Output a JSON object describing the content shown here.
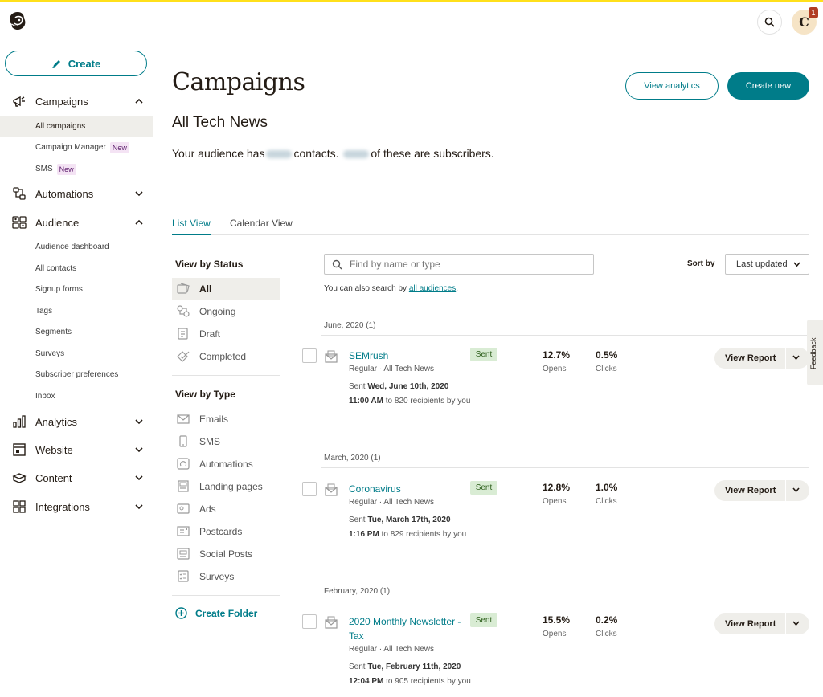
{
  "app": {
    "name": "Mailchimp"
  },
  "header": {
    "avatar_letter": "C",
    "notification_count": "1"
  },
  "sidebar": {
    "create_label": "Create",
    "sections": [
      {
        "label": "Campaigns",
        "expanded": true,
        "items": [
          {
            "label": "All campaigns",
            "active": true
          },
          {
            "label": "Campaign Manager",
            "badge": "New"
          },
          {
            "label": "SMS",
            "badge": "New"
          }
        ]
      },
      {
        "label": "Automations",
        "expanded": false
      },
      {
        "label": "Audience",
        "expanded": true,
        "items": [
          {
            "label": "Audience dashboard"
          },
          {
            "label": "All contacts"
          },
          {
            "label": "Signup forms"
          },
          {
            "label": "Tags"
          },
          {
            "label": "Segments"
          },
          {
            "label": "Surveys"
          },
          {
            "label": "Subscriber preferences"
          },
          {
            "label": "Inbox"
          }
        ]
      },
      {
        "label": "Analytics",
        "expanded": false
      },
      {
        "label": "Website",
        "expanded": false
      },
      {
        "label": "Content",
        "expanded": false
      },
      {
        "label": "Integrations",
        "expanded": false
      }
    ]
  },
  "page": {
    "title": "Campaigns",
    "view_analytics_label": "View analytics",
    "create_new_label": "Create new",
    "audience_name": "All Tech News",
    "audience_text_1": "Your audience has",
    "audience_text_2": "contacts.",
    "audience_text_3": "of these are subscribers."
  },
  "tabs": [
    {
      "label": "List View",
      "active": true
    },
    {
      "label": "Calendar View"
    }
  ],
  "filters": {
    "status_heading": "View by Status",
    "status": [
      {
        "label": "All",
        "active": true
      },
      {
        "label": "Ongoing"
      },
      {
        "label": "Draft"
      },
      {
        "label": "Completed"
      }
    ],
    "type_heading": "View by Type",
    "types": [
      {
        "label": "Emails"
      },
      {
        "label": "SMS"
      },
      {
        "label": "Automations"
      },
      {
        "label": "Landing pages"
      },
      {
        "label": "Ads"
      },
      {
        "label": "Postcards"
      },
      {
        "label": "Social Posts"
      },
      {
        "label": "Surveys"
      }
    ],
    "create_folder_label": "Create Folder"
  },
  "search": {
    "placeholder": "Find by name or type",
    "also_prefix": "You can also search by",
    "also_link": "all audiences",
    "also_suffix": "."
  },
  "sort": {
    "label": "Sort by",
    "value": "Last updated"
  },
  "campaign_groups": [
    {
      "heading": "June, 2020 (1)",
      "campaign": {
        "name": "SEMrush",
        "sub": "Regular · All Tech News",
        "status": "Sent",
        "sent_prefix": "Sent",
        "sent_date": "Wed, June 10th, 2020",
        "sent_time": "11:00 AM",
        "sent_suffix": "to 820 recipients by you",
        "opens": "12.7%",
        "opens_label": "Opens",
        "clicks": "0.5%",
        "clicks_label": "Clicks",
        "report_label": "View Report"
      }
    },
    {
      "heading": "March, 2020 (1)",
      "campaign": {
        "name": "Coronavirus",
        "sub": "Regular · All Tech News",
        "status": "Sent",
        "sent_prefix": "Sent",
        "sent_date": "Tue, March 17th, 2020",
        "sent_time": "1:16 PM",
        "sent_suffix": "to 829 recipients by you",
        "opens": "12.8%",
        "opens_label": "Opens",
        "clicks": "1.0%",
        "clicks_label": "Clicks",
        "report_label": "View Report"
      }
    },
    {
      "heading": "February, 2020 (1)",
      "campaign": {
        "name": "2020 Monthly Newsletter - Tax",
        "sub": "Regular · All Tech News",
        "status": "Sent",
        "sent_prefix": "Sent",
        "sent_date": "Tue, February 11th, 2020",
        "sent_time": "12:04 PM",
        "sent_suffix": "to 905 recipients by you",
        "opens": "15.5%",
        "opens_label": "Opens",
        "clicks": "0.2%",
        "clicks_label": "Clicks",
        "report_label": "View Report"
      }
    }
  ],
  "feedback_label": "Feedback",
  "colors": {
    "accent": "#007c89",
    "brand_yellow": "#ffe01b",
    "sent_badge": "#d9ecd4",
    "active_bg": "#efeeea"
  }
}
